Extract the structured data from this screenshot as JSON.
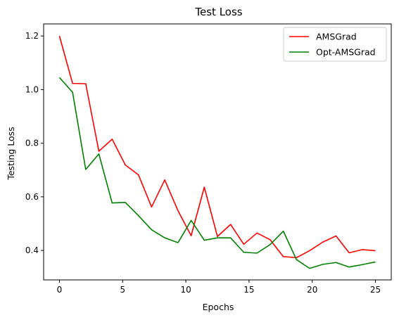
{
  "chart_data": {
    "type": "line",
    "title": "Test Loss",
    "xlabel": "Epochs",
    "ylabel": "Testing Loss",
    "xlim": [
      -1.25,
      26.25
    ],
    "ylim": [
      0.29,
      1.245
    ],
    "xticks": [
      0,
      5,
      10,
      15,
      20,
      25
    ],
    "yticks": [
      0.4,
      0.6,
      0.8,
      1.0,
      1.2
    ],
    "xtick_labels": [
      "0",
      "5",
      "10",
      "15",
      "20",
      "25"
    ],
    "ytick_labels": [
      "0.4",
      "0.6",
      "0.8",
      "1.0",
      "1.2"
    ],
    "grid": false,
    "legend_position": "top-right",
    "x": [
      0,
      1.04,
      2.08,
      3.12,
      4.17,
      5.21,
      6.25,
      7.29,
      8.33,
      9.38,
      10.42,
      11.46,
      12.5,
      13.54,
      14.58,
      15.63,
      16.67,
      17.71,
      18.75,
      19.79,
      20.83,
      21.88,
      22.92,
      23.96,
      25
    ],
    "series": [
      {
        "name": "AMSGrad",
        "color": "#ff0000",
        "values": [
          1.2,
          1.023,
          1.022,
          0.77,
          0.815,
          0.719,
          0.682,
          0.562,
          0.663,
          0.548,
          0.455,
          0.636,
          0.452,
          0.497,
          0.423,
          0.465,
          0.44,
          0.377,
          0.373,
          0.399,
          0.431,
          0.454,
          0.391,
          0.403,
          0.399
        ]
      },
      {
        "name": "Opt-AMSGrad",
        "color": "#008000",
        "values": [
          1.045,
          0.99,
          0.702,
          0.76,
          0.577,
          0.579,
          0.53,
          0.477,
          0.447,
          0.429,
          0.512,
          0.438,
          0.447,
          0.447,
          0.393,
          0.39,
          0.422,
          0.472,
          0.366,
          0.333,
          0.348,
          0.355,
          0.338,
          0.347,
          0.357
        ]
      }
    ]
  }
}
